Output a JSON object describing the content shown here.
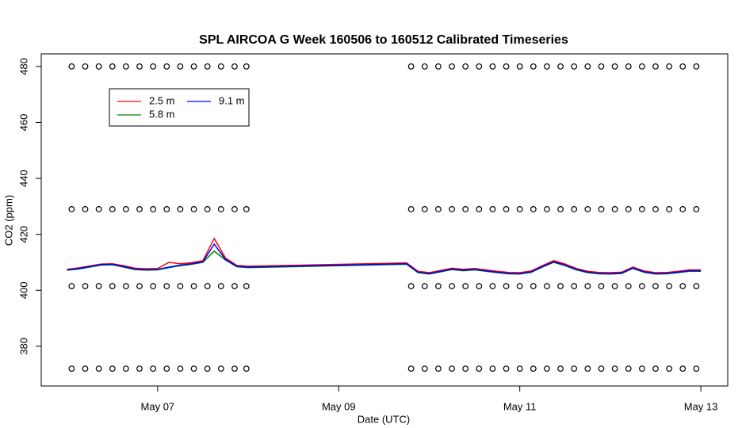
{
  "chart_data": {
    "type": "line",
    "title": "SPL AIRCOA G  Week 160506 to 160512  Calibrated Timeseries",
    "x_label": "Date (UTC)",
    "y_label": "CO2 (ppm)",
    "xlim": [
      5.714,
      13.297
    ],
    "ylim": [
      365.8,
      484.5
    ],
    "xticks": [
      {
        "value": 7,
        "label": "May 07"
      },
      {
        "value": 9,
        "label": "May 09"
      },
      {
        "value": 11,
        "label": "May 11"
      },
      {
        "value": 13,
        "label": "May 13"
      }
    ],
    "yticks": [
      380,
      400,
      420,
      440,
      460,
      480
    ],
    "x": [
      6.0,
      6.125,
      6.25,
      6.375,
      6.5,
      6.625,
      6.75,
      6.875,
      7.0,
      7.125,
      7.25,
      7.375,
      7.5,
      7.625,
      7.75,
      7.875,
      8.0,
      9.75,
      9.875,
      10.0,
      10.125,
      10.25,
      10.375,
      10.5,
      10.625,
      10.75,
      10.875,
      11.0,
      11.125,
      11.25,
      11.375,
      11.5,
      11.625,
      11.75,
      11.875,
      12.0,
      12.125,
      12.25,
      12.375,
      12.5,
      12.625,
      12.75,
      12.875,
      13.0
    ],
    "series": [
      {
        "name": "2.5 m",
        "color": "#ff0000",
        "values": [
          407.5,
          408.0,
          408.7,
          409.4,
          409.5,
          408.8,
          407.9,
          407.7,
          407.8,
          410.0,
          409.5,
          409.9,
          410.6,
          418.5,
          411.5,
          408.9,
          408.6,
          409.8,
          406.8,
          406.3,
          407.1,
          407.9,
          407.5,
          407.8,
          407.3,
          406.8,
          406.4,
          406.3,
          406.9,
          408.8,
          410.6,
          409.4,
          407.8,
          406.8,
          406.4,
          406.3,
          406.5,
          408.3,
          406.9,
          406.3,
          406.4,
          406.8,
          407.3,
          407.3
        ]
      },
      {
        "name": "5.8 m",
        "color": "#008000",
        "values": [
          407.2,
          407.6,
          408.3,
          409.0,
          409.1,
          408.3,
          407.4,
          407.2,
          407.3,
          408.1,
          408.8,
          409.3,
          410.0,
          414.0,
          410.8,
          408.4,
          408.1,
          409.3,
          406.3,
          405.8,
          406.6,
          407.4,
          407.0,
          407.3,
          406.8,
          406.3,
          405.9,
          405.8,
          406.4,
          408.3,
          410.0,
          408.8,
          407.3,
          406.3,
          405.9,
          405.8,
          406.0,
          407.8,
          406.4,
          405.8,
          405.9,
          406.3,
          406.8,
          406.8
        ]
      },
      {
        "name": "9.1 m",
        "color": "#0000ff",
        "values": [
          407.3,
          407.8,
          408.5,
          409.2,
          409.3,
          408.5,
          407.6,
          407.4,
          407.5,
          408.3,
          409.0,
          409.5,
          410.2,
          416.5,
          411.0,
          408.6,
          408.3,
          409.5,
          406.5,
          406.0,
          406.8,
          407.6,
          407.2,
          407.5,
          407.0,
          406.5,
          406.1,
          406.0,
          406.6,
          408.5,
          410.2,
          409.0,
          407.5,
          406.5,
          406.1,
          406.0,
          406.2,
          408.0,
          406.6,
          406.0,
          406.1,
          406.5,
          407.0,
          407.0
        ]
      }
    ],
    "calibration": {
      "levels": [
        372,
        401.5,
        429,
        480
      ],
      "x": [
        6.05,
        6.2,
        6.35,
        6.5,
        6.65,
        6.8,
        6.95,
        7.1,
        7.25,
        7.4,
        7.55,
        7.7,
        7.85,
        7.98,
        9.8,
        9.95,
        10.1,
        10.25,
        10.4,
        10.55,
        10.7,
        10.85,
        11.0,
        11.15,
        11.3,
        11.45,
        11.6,
        11.75,
        11.9,
        12.05,
        12.2,
        12.35,
        12.5,
        12.65,
        12.8,
        12.95
      ]
    }
  }
}
